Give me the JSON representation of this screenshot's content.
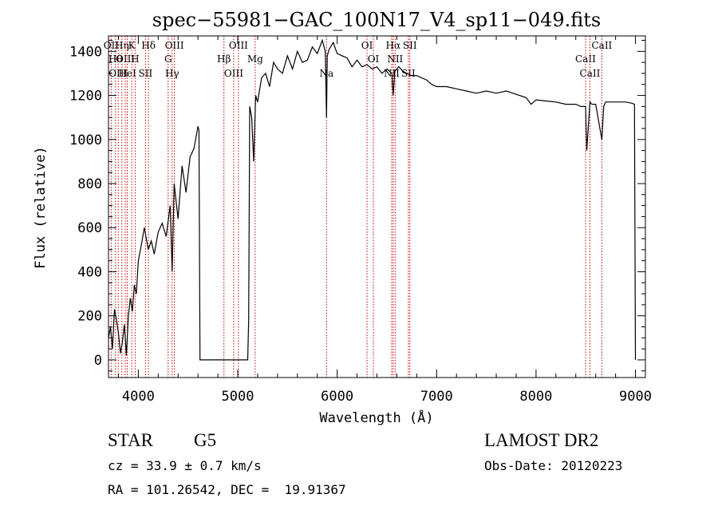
{
  "chart_data": {
    "type": "line",
    "title": "spec−55981−GAC_100N17_V4_sp11−049.fits",
    "xlabel": "Wavelength (Å)",
    "ylabel": "Flux (relative)",
    "xlim": [
      3700,
      9100
    ],
    "ylim": [
      -80,
      1470
    ],
    "xticks": [
      4000,
      5000,
      6000,
      7000,
      8000,
      9000
    ],
    "yticks": [
      0,
      200,
      400,
      600,
      800,
      1000,
      1200,
      1400
    ],
    "grid": false,
    "series": [
      {
        "x": [
          3700,
          3720,
          3740,
          3760,
          3780,
          3800,
          3820,
          3840,
          3860,
          3880,
          3900,
          3920,
          3940,
          3960,
          3980,
          4000,
          4030,
          4060,
          4100,
          4130,
          4160,
          4200,
          4240,
          4280,
          4320,
          4340,
          4360,
          4400,
          4440,
          4480,
          4520,
          4560,
          4600,
          4610,
          4620,
          5100,
          5110,
          5120,
          5140,
          5160,
          5180,
          5200,
          5240,
          5280,
          5320,
          5360,
          5400,
          5450,
          5500,
          5550,
          5600,
          5650,
          5700,
          5750,
          5800,
          5850,
          5880,
          5893,
          5900,
          5920,
          5960,
          6000,
          6050,
          6100,
          6150,
          6200,
          6250,
          6300,
          6350,
          6400,
          6450,
          6500,
          6550,
          6563,
          6580,
          6620,
          6660,
          6700,
          6750,
          6800,
          6850,
          6900,
          6950,
          7000,
          7100,
          7200,
          7300,
          7400,
          7500,
          7600,
          7700,
          7800,
          7900,
          7950,
          8000,
          8100,
          8200,
          8300,
          8400,
          8450,
          8498,
          8510,
          8542,
          8560,
          8600,
          8662,
          8680,
          8700,
          8800,
          8900,
          8960,
          8990,
          9000
        ],
        "y": [
          100,
          150,
          50,
          230,
          180,
          120,
          30,
          80,
          160,
          20,
          200,
          280,
          220,
          340,
          300,
          450,
          520,
          600,
          500,
          540,
          480,
          580,
          620,
          560,
          700,
          400,
          800,
          640,
          880,
          760,
          920,
          960,
          1060,
          1040,
          0,
          0,
          180,
          1150,
          1100,
          900,
          1200,
          1170,
          1280,
          1300,
          1240,
          1350,
          1320,
          1300,
          1380,
          1320,
          1400,
          1350,
          1360,
          1420,
          1390,
          1450,
          1400,
          1100,
          1380,
          1410,
          1440,
          1390,
          1380,
          1370,
          1330,
          1360,
          1330,
          1340,
          1320,
          1330,
          1300,
          1320,
          1300,
          1200,
          1310,
          1330,
          1310,
          1300,
          1290,
          1290,
          1280,
          1270,
          1250,
          1240,
          1240,
          1230,
          1220,
          1210,
          1220,
          1210,
          1220,
          1205,
          1190,
          1160,
          1180,
          1175,
          1170,
          1160,
          1160,
          1150,
          1150,
          950,
          1170,
          1160,
          1160,
          1000,
          1150,
          1170,
          1170,
          1170,
          1165,
          1160,
          0
        ]
      }
    ],
    "lines": [
      {
        "x": 3727,
        "labels": [
          "OII"
        ]
      },
      {
        "x": 3770,
        "labels": [
          "Hθ"
        ]
      },
      {
        "x": 3798,
        "labels": [
          "OIII"
        ]
      },
      {
        "x": 3835,
        "labels": [
          "Hη"
        ]
      },
      {
        "x": 3869,
        "labels": [
          "OIII"
        ]
      },
      {
        "x": 3889,
        "labels": [
          "HeI"
        ]
      },
      {
        "x": 3934,
        "labels": [
          "K"
        ]
      },
      {
        "x": 3968,
        "labels": [
          "H"
        ]
      },
      {
        "x": 4072,
        "labels": [
          "SII"
        ]
      },
      {
        "x": 4102,
        "labels": [
          "Hδ"
        ]
      },
      {
        "x": 4300,
        "labels": [
          "G"
        ]
      },
      {
        "x": 4340,
        "labels": [
          "Hγ"
        ]
      },
      {
        "x": 4363,
        "labels": [
          "OIII"
        ]
      },
      {
        "x": 4861,
        "labels": [
          "Hβ"
        ]
      },
      {
        "x": 4959,
        "labels": [
          "OIII"
        ]
      },
      {
        "x": 5007,
        "labels": [
          "OIII"
        ]
      },
      {
        "x": 5175,
        "labels": [
          "Mg"
        ]
      },
      {
        "x": 5893,
        "labels": [
          "Na"
        ]
      },
      {
        "x": 6300,
        "labels": [
          "OI"
        ]
      },
      {
        "x": 6364,
        "labels": [
          "OI"
        ]
      },
      {
        "x": 6548,
        "labels": [
          "NII"
        ]
      },
      {
        "x": 6563,
        "labels": [
          "Hα"
        ]
      },
      {
        "x": 6583,
        "labels": [
          "NII"
        ]
      },
      {
        "x": 6716,
        "labels": [
          "SII"
        ]
      },
      {
        "x": 6731,
        "labels": [
          "SII"
        ]
      },
      {
        "x": 8498,
        "labels": [
          "CaII"
        ]
      },
      {
        "x": 8542,
        "labels": [
          "CaII"
        ]
      },
      {
        "x": 8662,
        "labels": [
          "CaII"
        ]
      }
    ],
    "line_color": "#cc0000"
  },
  "info": {
    "class": "STAR",
    "subclass": "G5",
    "cz": "cz = 33.9 ± 0.7 km/s",
    "coords": "RA = 101.26542, DEC =  19.91367",
    "survey": "LAMOST DR2",
    "obs_date": "Obs-Date: 20120223"
  }
}
